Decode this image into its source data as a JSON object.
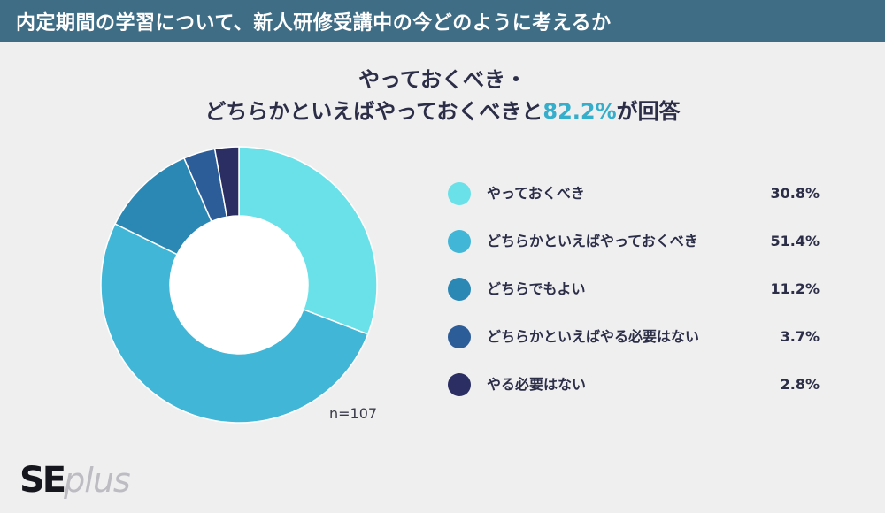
{
  "header": {
    "title": "内定期間の学習について、新人研修受講中の今どのように考えるか"
  },
  "headline": {
    "line1": "やっておくべき・",
    "line2_prefix": "どちらかといえばやっておくべきと",
    "line2_highlight": "82.2%",
    "line2_suffix": "が回答"
  },
  "logo": {
    "primary": "SE",
    "secondary": "plus"
  },
  "chart_data": {
    "type": "pie",
    "style": "donut",
    "annotation": "n=107",
    "legend_position": "right",
    "slices": [
      {
        "label": "やっておくべき",
        "value": 30.8,
        "display": "30.8%",
        "color": "#6ae1e8"
      },
      {
        "label": "どちらかといえばやっておくべき",
        "value": 51.4,
        "display": "51.4%",
        "color": "#41b6d6"
      },
      {
        "label": "どちらでもよい",
        "value": 11.2,
        "display": "11.2%",
        "color": "#2b88b5"
      },
      {
        "label": "どちらかといえばやる必要はない",
        "value": 3.7,
        "display": "3.7%",
        "color": "#2d5d98"
      },
      {
        "label": "やる必要はない",
        "value": 2.8,
        "display": "2.8%",
        "color": "#2b2e62"
      }
    ]
  }
}
